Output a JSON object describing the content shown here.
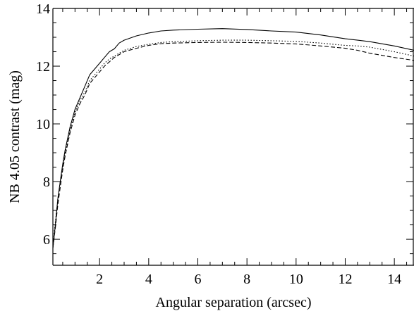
{
  "chart_data": {
    "type": "line",
    "title": "",
    "xlabel": "Angular separation (arcsec)",
    "ylabel": "NB 4.05 contrast (mag)",
    "xlim": [
      0.1,
      14.8
    ],
    "ylim": [
      5.1,
      14.0
    ],
    "xticks": [
      2,
      4,
      6,
      8,
      10,
      12,
      14
    ],
    "yticks": [
      6,
      8,
      10,
      12,
      14
    ],
    "x_minor_step": 0.5,
    "y_minor_step": 0.5,
    "grid": false,
    "legend": "none",
    "series": [
      {
        "style": "solid",
        "color": "#000000",
        "x": [
          0.1,
          0.2,
          0.3,
          0.4,
          0.5,
          0.6,
          0.7,
          0.8,
          0.9,
          1.0,
          1.2,
          1.4,
          1.6,
          1.8,
          2.0,
          2.2,
          2.4,
          2.6,
          2.8,
          3.0,
          3.5,
          4.0,
          4.5,
          5.0,
          6.0,
          7.0,
          8.0,
          9.0,
          10.0,
          11.0,
          12.0,
          12.5,
          13.0,
          14.0,
          14.8
        ],
        "y": [
          5.7,
          6.5,
          7.4,
          8.0,
          8.6,
          9.1,
          9.5,
          9.9,
          10.2,
          10.5,
          10.9,
          11.3,
          11.7,
          11.9,
          12.1,
          12.3,
          12.5,
          12.6,
          12.8,
          12.9,
          13.05,
          13.15,
          13.22,
          13.25,
          13.28,
          13.3,
          13.27,
          13.22,
          13.18,
          13.08,
          12.95,
          12.9,
          12.85,
          12.7,
          12.55
        ]
      },
      {
        "style": "dashed",
        "color": "#000000",
        "x": [
          0.1,
          0.2,
          0.3,
          0.4,
          0.5,
          0.6,
          0.7,
          0.8,
          0.9,
          1.0,
          1.2,
          1.4,
          1.6,
          1.8,
          2.0,
          2.2,
          2.4,
          2.6,
          2.8,
          3.0,
          3.5,
          4.0,
          4.5,
          5.0,
          6.0,
          7.0,
          8.0,
          9.0,
          10.0,
          11.0,
          12.0,
          12.5,
          13.0,
          14.0,
          14.8
        ],
        "y": [
          5.7,
          6.4,
          7.2,
          7.8,
          8.4,
          8.9,
          9.3,
          9.7,
          10.0,
          10.3,
          10.7,
          11.0,
          11.4,
          11.6,
          11.8,
          12.0,
          12.15,
          12.3,
          12.4,
          12.5,
          12.62,
          12.72,
          12.78,
          12.8,
          12.82,
          12.83,
          12.82,
          12.8,
          12.77,
          12.7,
          12.62,
          12.55,
          12.45,
          12.3,
          12.2
        ]
      },
      {
        "style": "dotted",
        "color": "#000000",
        "x": [
          0.1,
          0.2,
          0.3,
          0.4,
          0.5,
          0.6,
          0.7,
          0.8,
          0.9,
          1.0,
          1.2,
          1.4,
          1.6,
          1.8,
          2.0,
          2.2,
          2.4,
          2.6,
          2.8,
          3.0,
          3.5,
          4.0,
          4.5,
          5.0,
          6.0,
          7.0,
          8.0,
          9.0,
          10.0,
          11.0,
          12.0,
          12.5,
          13.0,
          14.0,
          14.8
        ],
        "y": [
          5.8,
          6.6,
          7.4,
          8.0,
          8.5,
          9.0,
          9.4,
          9.8,
          10.1,
          10.4,
          10.8,
          11.1,
          11.5,
          11.7,
          11.9,
          12.1,
          12.25,
          12.35,
          12.45,
          12.55,
          12.68,
          12.76,
          12.82,
          12.85,
          12.88,
          12.9,
          12.9,
          12.88,
          12.86,
          12.8,
          12.72,
          12.7,
          12.66,
          12.5,
          12.35
        ]
      }
    ]
  }
}
